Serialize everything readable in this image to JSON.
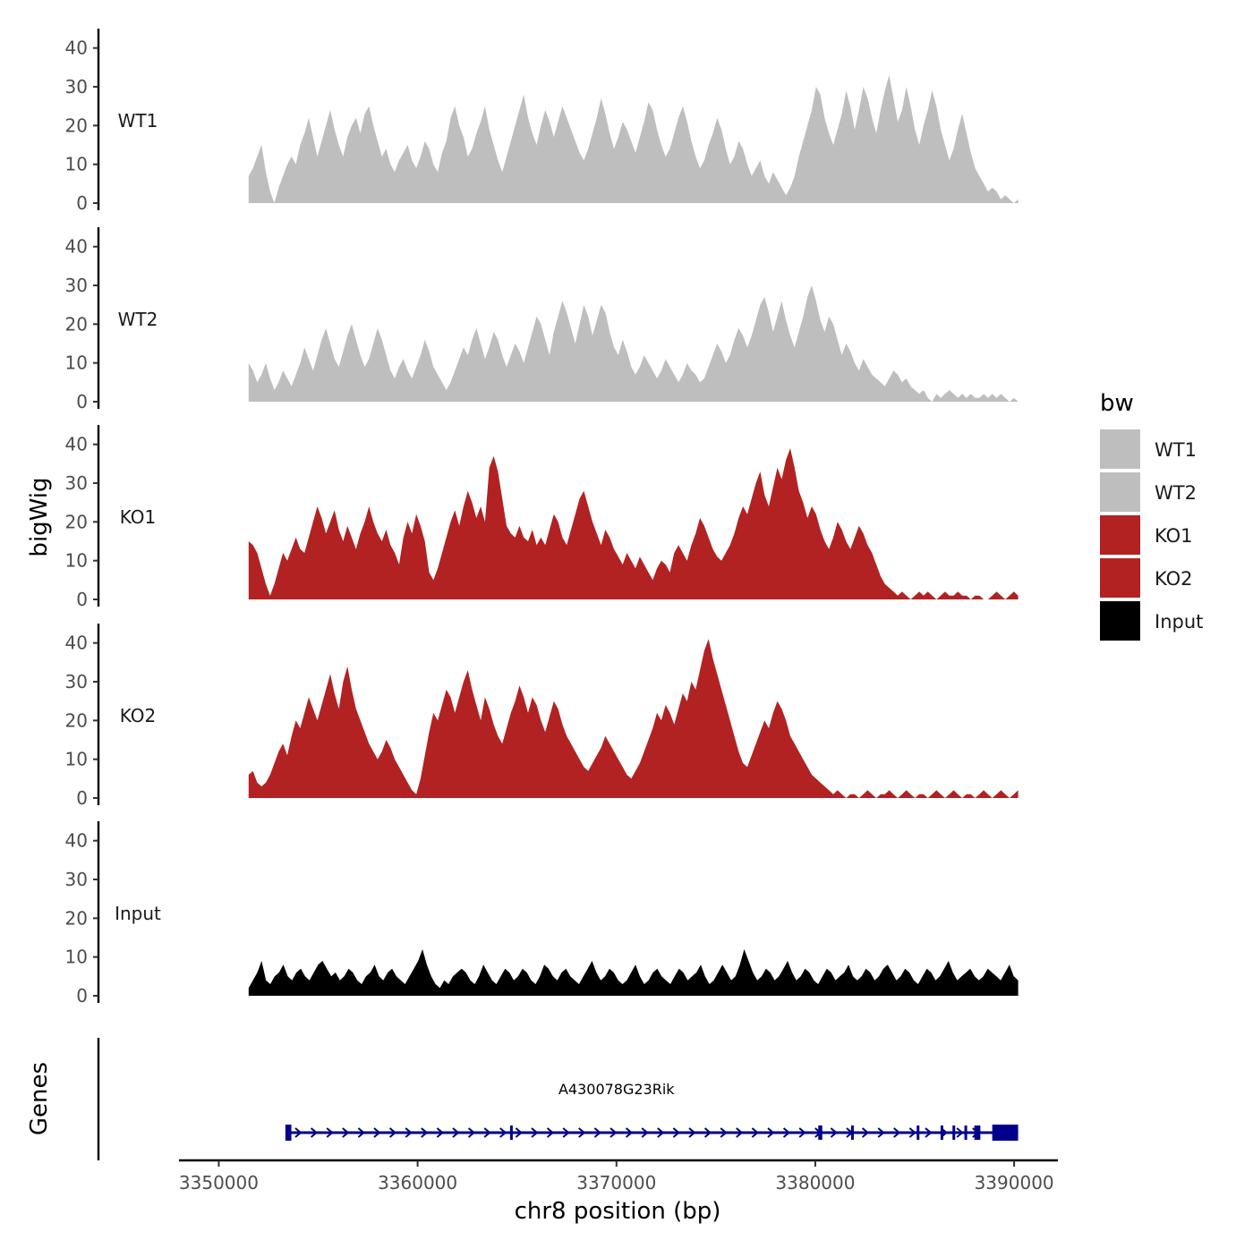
{
  "chart_data": {
    "type": "area",
    "title": "",
    "ylabel": "bigWig",
    "xlabel": "chr8 position (bp)",
    "gene_track_label": "Genes",
    "xlim": [
      3348000,
      3392200
    ],
    "ylim": [
      0,
      45
    ],
    "x_ticks": [
      3350000,
      3360000,
      3370000,
      3380000,
      3390000
    ],
    "x_tick_labels": [
      "3350000",
      "3360000",
      "3370000",
      "3380000",
      "3390000"
    ],
    "y_ticks": [
      0,
      10,
      20,
      30,
      40
    ],
    "y_tick_labels": [
      "0",
      "10",
      "20",
      "30",
      "40"
    ],
    "x_start": 3351500,
    "x_end": 3390200,
    "legend": {
      "title": "bw",
      "position": "right",
      "entries": [
        {
          "label": "WT1",
          "color": "#bebebe"
        },
        {
          "label": "WT2",
          "color": "#bebebe"
        },
        {
          "label": "KO1",
          "color": "#b22222"
        },
        {
          "label": "KO2",
          "color": "#b22222"
        },
        {
          "label": "Input",
          "color": "#000000"
        }
      ]
    },
    "series": [
      {
        "name": "WT1",
        "color": "#bebebe",
        "values": [
          7,
          9,
          12,
          15,
          8,
          3,
          0,
          4,
          7,
          10,
          12,
          10,
          15,
          18,
          22,
          17,
          12,
          16,
          20,
          24,
          19,
          15,
          12,
          17,
          20,
          22,
          18,
          23,
          25,
          20,
          16,
          12,
          14,
          10,
          8,
          11,
          13,
          15,
          11,
          9,
          12,
          16,
          14,
          10,
          8,
          13,
          16,
          22,
          25,
          20,
          17,
          12,
          14,
          18,
          21,
          25,
          19,
          15,
          11,
          8,
          12,
          16,
          20,
          24,
          28,
          22,
          18,
          15,
          20,
          24,
          21,
          17,
          21,
          25,
          22,
          19,
          16,
          13,
          11,
          14,
          18,
          22,
          27,
          23,
          18,
          14,
          17,
          21,
          19,
          16,
          13,
          17,
          21,
          26,
          24,
          19,
          15,
          12,
          14,
          18,
          22,
          25,
          21,
          16,
          12,
          9,
          11,
          15,
          18,
          22,
          19,
          14,
          10,
          12,
          16,
          14,
          10,
          7,
          9,
          11,
          7,
          5,
          8,
          6,
          4,
          2,
          4,
          7,
          12,
          16,
          20,
          24,
          30,
          28,
          22,
          18,
          15,
          19,
          23,
          29,
          25,
          19,
          24,
          30,
          27,
          22,
          18,
          24,
          29,
          33,
          27,
          21,
          24,
          30,
          25,
          19,
          15,
          20,
          24,
          29,
          25,
          19,
          15,
          11,
          14,
          19,
          23,
          18,
          13,
          9,
          7,
          5,
          3,
          4,
          3,
          1,
          2,
          1,
          0,
          1
        ]
      },
      {
        "name": "WT2",
        "color": "#bebebe",
        "values": [
          10,
          8,
          5,
          7,
          10,
          6,
          3,
          5,
          8,
          6,
          4,
          7,
          10,
          14,
          11,
          8,
          12,
          16,
          19,
          15,
          11,
          9,
          13,
          17,
          20,
          16,
          12,
          9,
          11,
          15,
          19,
          16,
          12,
          8,
          6,
          9,
          11,
          8,
          6,
          9,
          12,
          16,
          13,
          9,
          7,
          5,
          3,
          5,
          8,
          11,
          14,
          12,
          16,
          19,
          15,
          11,
          14,
          18,
          16,
          12,
          9,
          12,
          15,
          13,
          10,
          14,
          18,
          22,
          20,
          16,
          12,
          18,
          22,
          26,
          23,
          19,
          15,
          20,
          25,
          22,
          17,
          21,
          25,
          23,
          18,
          14,
          12,
          16,
          13,
          9,
          7,
          9,
          12,
          10,
          8,
          6,
          8,
          11,
          9,
          7,
          5,
          7,
          10,
          8,
          7,
          5,
          6,
          9,
          12,
          15,
          13,
          10,
          12,
          16,
          19,
          17,
          14,
          17,
          21,
          25,
          27,
          23,
          18,
          22,
          26,
          21,
          17,
          14,
          18,
          22,
          27,
          30,
          26,
          21,
          18,
          22,
          20,
          16,
          12,
          15,
          13,
          10,
          8,
          11,
          9,
          7,
          6,
          5,
          4,
          6,
          8,
          7,
          5,
          6,
          4,
          3,
          2,
          3,
          1,
          0,
          2,
          1,
          2,
          3,
          2,
          1,
          2,
          1,
          2,
          1,
          1,
          2,
          1,
          2,
          1,
          2,
          1,
          0,
          1,
          0
        ]
      },
      {
        "name": "KO1",
        "color": "#b22222",
        "values": [
          15,
          14,
          12,
          8,
          4,
          1,
          4,
          8,
          12,
          10,
          13,
          16,
          13,
          12,
          16,
          20,
          24,
          21,
          17,
          20,
          23,
          18,
          15,
          19,
          16,
          13,
          17,
          20,
          24,
          20,
          17,
          15,
          18,
          14,
          12,
          9,
          16,
          20,
          17,
          22,
          19,
          15,
          7,
          5,
          8,
          12,
          16,
          20,
          23,
          19,
          24,
          28,
          25,
          21,
          24,
          20,
          34,
          37,
          33,
          26,
          19,
          17,
          16,
          19,
          16,
          15,
          18,
          14,
          16,
          14,
          18,
          22,
          20,
          16,
          14,
          18,
          22,
          26,
          28,
          24,
          20,
          17,
          14,
          18,
          16,
          13,
          11,
          9,
          12,
          10,
          8,
          11,
          9,
          7,
          5,
          8,
          10,
          9,
          7,
          12,
          14,
          12,
          10,
          14,
          17,
          21,
          19,
          16,
          13,
          11,
          10,
          12,
          14,
          17,
          21,
          24,
          22,
          26,
          30,
          33,
          27,
          24,
          29,
          34,
          31,
          36,
          39,
          34,
          28,
          25,
          21,
          24,
          22,
          18,
          15,
          13,
          16,
          20,
          18,
          15,
          13,
          16,
          19,
          17,
          14,
          12,
          9,
          6,
          4,
          3,
          2,
          1,
          2,
          1,
          0,
          1,
          2,
          1,
          2,
          1,
          0,
          1,
          2,
          1,
          1,
          2,
          1,
          1,
          0,
          1,
          1,
          0,
          0,
          1,
          2,
          1,
          0,
          1,
          2,
          1
        ]
      },
      {
        "name": "KO2",
        "color": "#b22222",
        "values": [
          6,
          7,
          4,
          3,
          4,
          6,
          9,
          12,
          14,
          11,
          16,
          20,
          18,
          22,
          26,
          23,
          20,
          24,
          28,
          32,
          27,
          23,
          30,
          34,
          28,
          23,
          20,
          17,
          14,
          12,
          10,
          12,
          15,
          13,
          10,
          8,
          6,
          4,
          2,
          1,
          5,
          11,
          17,
          22,
          20,
          24,
          28,
          26,
          22,
          26,
          30,
          33,
          28,
          24,
          20,
          26,
          23,
          19,
          16,
          14,
          18,
          22,
          25,
          29,
          26,
          22,
          26,
          24,
          20,
          17,
          21,
          25,
          23,
          19,
          16,
          14,
          12,
          10,
          8,
          7,
          9,
          11,
          13,
          16,
          14,
          12,
          10,
          8,
          6,
          5,
          7,
          9,
          12,
          15,
          18,
          22,
          20,
          24,
          22,
          19,
          23,
          27,
          25,
          30,
          28,
          33,
          38,
          41,
          36,
          32,
          28,
          24,
          20,
          16,
          12,
          9,
          8,
          11,
          14,
          17,
          20,
          18,
          22,
          25,
          23,
          20,
          16,
          14,
          12,
          10,
          8,
          6,
          5,
          4,
          3,
          2,
          1,
          2,
          1,
          0,
          1,
          1,
          0,
          1,
          2,
          1,
          0,
          1,
          1,
          2,
          1,
          0,
          1,
          2,
          1,
          0,
          1,
          1,
          0,
          1,
          2,
          1,
          0,
          1,
          2,
          1,
          0,
          1,
          1,
          0,
          1,
          2,
          1,
          0,
          1,
          2,
          1,
          0,
          1,
          2
        ]
      },
      {
        "name": "Input",
        "color": "#000000",
        "values": [
          2,
          4,
          6,
          9,
          4,
          3,
          5,
          6,
          8,
          5,
          4,
          6,
          7,
          5,
          4,
          6,
          8,
          9,
          7,
          5,
          6,
          4,
          5,
          7,
          6,
          4,
          3,
          5,
          6,
          8,
          5,
          4,
          6,
          7,
          5,
          4,
          3,
          5,
          7,
          9,
          12,
          8,
          5,
          3,
          2,
          4,
          3,
          5,
          6,
          7,
          6,
          4,
          3,
          5,
          8,
          6,
          4,
          3,
          5,
          7,
          6,
          4,
          5,
          7,
          6,
          4,
          3,
          5,
          8,
          7,
          5,
          4,
          6,
          7,
          5,
          4,
          3,
          5,
          7,
          9,
          6,
          4,
          5,
          7,
          6,
          4,
          3,
          4,
          6,
          8,
          5,
          3,
          4,
          6,
          7,
          5,
          4,
          3,
          5,
          7,
          6,
          4,
          5,
          6,
          8,
          5,
          3,
          4,
          6,
          8,
          6,
          4,
          5,
          8,
          12,
          9,
          6,
          4,
          5,
          7,
          6,
          4,
          5,
          7,
          9,
          6,
          4,
          5,
          7,
          6,
          4,
          3,
          5,
          7,
          6,
          4,
          5,
          6,
          8,
          5,
          4,
          5,
          7,
          6,
          4,
          5,
          7,
          8,
          6,
          4,
          5,
          7,
          6,
          4,
          3,
          5,
          7,
          6,
          4,
          5,
          7,
          9,
          6,
          4,
          5,
          6,
          7,
          5,
          4,
          5,
          7,
          6,
          5,
          4,
          6,
          8,
          5,
          4
        ]
      }
    ],
    "gene": {
      "name": "A430078G23Rik",
      "strand": "+",
      "color": "#00008b",
      "start": 3353400,
      "end": 3390200,
      "exons": [
        [
          3353350,
          3353650
        ],
        [
          3364650,
          3364750
        ],
        [
          3380150,
          3380350
        ],
        [
          3381800,
          3381900
        ],
        [
          3385100,
          3385200
        ],
        [
          3386300,
          3386400
        ],
        [
          3386900,
          3387000
        ],
        [
          3387500,
          3387600
        ],
        [
          3388000,
          3388300
        ],
        [
          3388900,
          3390200
        ]
      ]
    }
  }
}
